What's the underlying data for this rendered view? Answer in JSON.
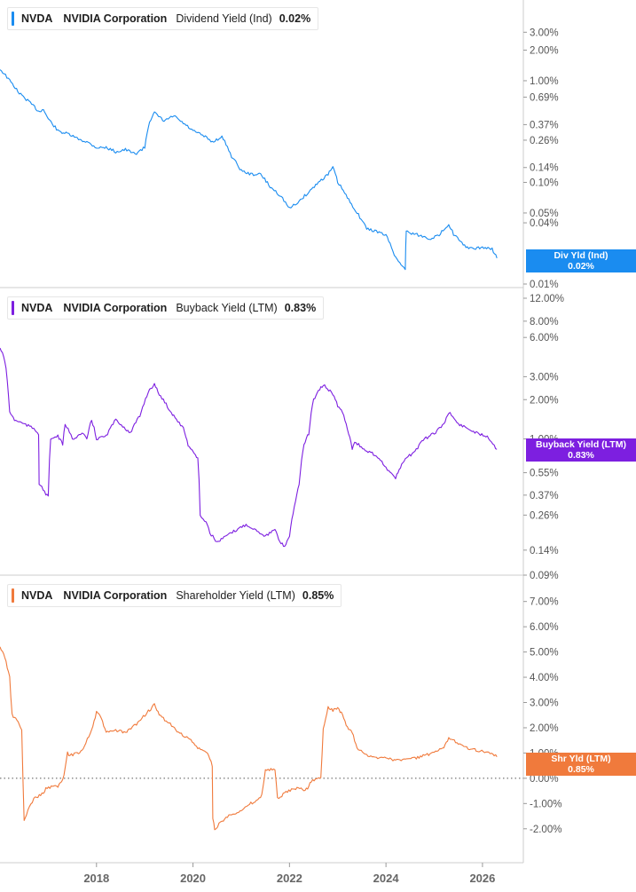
{
  "colors": {
    "dividend": "#1a8cf0",
    "buyback": "#7d1fe0",
    "shareholder": "#f07a3c",
    "axis_text": "#555555",
    "grid": "#dddddd"
  },
  "legends": [
    {
      "ticker": "NVDA",
      "company": "NVIDIA Corporation",
      "metric": "Dividend Yield (Ind)",
      "value": "0.02%"
    },
    {
      "ticker": "NVDA",
      "company": "NVIDIA Corporation",
      "metric": "Buyback Yield (LTM)",
      "value": "0.83%"
    },
    {
      "ticker": "NVDA",
      "company": "NVIDIA Corporation",
      "metric": "Shareholder Yield (LTM)",
      "value": "0.85%"
    }
  ],
  "flags": [
    {
      "label": "Div Yld (Ind)",
      "value": "0.02%"
    },
    {
      "label": "Buyback Yield (LTM)",
      "value": "0.83%"
    },
    {
      "label": "Shr Yld (LTM)",
      "value": "0.85%"
    }
  ],
  "chart_data": [
    {
      "type": "line",
      "series": [
        {
          "name": "Dividend Yield (Ind)",
          "x": [
            2016.0,
            2016.2,
            2016.4,
            2016.6,
            2016.8,
            2016.9,
            2017.0,
            2017.2,
            2017.4,
            2017.6,
            2017.8,
            2018.0,
            2018.2,
            2018.4,
            2018.6,
            2018.8,
            2019.0,
            2019.1,
            2019.2,
            2019.4,
            2019.6,
            2019.8,
            2020.0,
            2020.2,
            2020.4,
            2020.6,
            2020.8,
            2021.0,
            2021.2,
            2021.4,
            2021.6,
            2021.8,
            2022.0,
            2022.2,
            2022.4,
            2022.6,
            2022.8,
            2022.9,
            2023.0,
            2023.2,
            2023.4,
            2023.6,
            2023.8,
            2024.0,
            2024.2,
            2024.4,
            2024.42,
            2024.5,
            2024.7,
            2024.9,
            2025.1,
            2025.3,
            2025.4,
            2025.6,
            2025.8,
            2026.0,
            2026.2,
            2026.3
          ],
          "y": [
            1.3,
            1.0,
            0.75,
            0.62,
            0.5,
            0.52,
            0.42,
            0.32,
            0.3,
            0.27,
            0.25,
            0.22,
            0.22,
            0.2,
            0.21,
            0.19,
            0.22,
            0.4,
            0.48,
            0.4,
            0.45,
            0.38,
            0.32,
            0.29,
            0.25,
            0.28,
            0.18,
            0.13,
            0.12,
            0.12,
            0.09,
            0.075,
            0.055,
            0.065,
            0.08,
            0.1,
            0.12,
            0.14,
            0.1,
            0.07,
            0.05,
            0.035,
            0.033,
            0.03,
            0.018,
            0.014,
            0.033,
            0.032,
            0.03,
            0.028,
            0.03,
            0.039,
            0.031,
            0.024,
            0.022,
            0.023,
            0.022,
            0.018
          ]
        }
      ],
      "y_scale": "log",
      "ylim": [
        0.01,
        4
      ],
      "y_ticks": [
        "3.00%",
        "2.00%",
        "1.00%",
        "0.69%",
        "0.37%",
        "0.26%",
        "0.14%",
        "0.10%",
        "0.05%",
        "0.04%",
        "0.01%"
      ]
    },
    {
      "type": "line",
      "series": [
        {
          "name": "Buyback Yield (LTM)",
          "x": [
            2016.0,
            2016.1,
            2016.2,
            2016.3,
            2016.5,
            2016.7,
            2016.8,
            2016.81,
            2016.95,
            2017.0,
            2017.05,
            2017.2,
            2017.3,
            2017.35,
            2017.5,
            2017.7,
            2017.8,
            2017.9,
            2018.0,
            2018.2,
            2018.4,
            2018.6,
            2018.7,
            2018.9,
            2019.1,
            2019.2,
            2019.3,
            2019.5,
            2019.6,
            2019.8,
            2019.9,
            2020.0,
            2020.1,
            2020.15,
            2020.3,
            2020.35,
            2020.5,
            2020.7,
            2020.9,
            2021.1,
            2021.3,
            2021.5,
            2021.7,
            2021.8,
            2021.9,
            2022.0,
            2022.1,
            2022.2,
            2022.3,
            2022.4,
            2022.5,
            2022.6,
            2022.7,
            2022.9,
            2023.0,
            2023.1,
            2023.2,
            2023.3,
            2023.35,
            2023.6,
            2023.8,
            2024.0,
            2024.2,
            2024.3,
            2024.4,
            2024.6,
            2024.8,
            2025.0,
            2025.2,
            2025.3,
            2025.5,
            2025.7,
            2025.9,
            2026.1,
            2026.3
          ],
          "y": [
            5.0,
            4.0,
            1.6,
            1.4,
            1.3,
            1.2,
            1.1,
            0.45,
            0.38,
            0.36,
            1.0,
            1.05,
            0.9,
            1.3,
            1.0,
            1.1,
            1.0,
            1.4,
            1.0,
            1.05,
            1.4,
            1.2,
            1.1,
            1.5,
            2.4,
            2.6,
            2.2,
            1.7,
            1.5,
            1.2,
            0.9,
            0.8,
            0.7,
            0.26,
            0.22,
            0.19,
            0.16,
            0.18,
            0.2,
            0.22,
            0.2,
            0.18,
            0.2,
            0.16,
            0.15,
            0.18,
            0.3,
            0.45,
            0.9,
            1.1,
            2.0,
            2.3,
            2.6,
            2.2,
            1.8,
            1.6,
            1.2,
            0.85,
            0.95,
            0.8,
            0.75,
            0.6,
            0.5,
            0.6,
            0.7,
            0.8,
            1.0,
            1.1,
            1.3,
            1.6,
            1.3,
            1.2,
            1.1,
            1.05,
            0.83
          ]
        }
      ],
      "y_scale": "log",
      "ylim": [
        0.09,
        12
      ],
      "y_ticks": [
        "12.00%",
        "8.00%",
        "6.00%",
        "3.00%",
        "2.00%",
        "1.00%",
        "0.55%",
        "0.37%",
        "0.26%",
        "0.14%",
        "0.09%"
      ]
    },
    {
      "type": "line",
      "series": [
        {
          "name": "Shareholder Yield (LTM)",
          "x": [
            2016.0,
            2016.1,
            2016.2,
            2016.25,
            2016.35,
            2016.45,
            2016.5,
            2016.55,
            2016.7,
            2016.9,
            2016.95,
            2017.2,
            2017.3,
            2017.4,
            2017.45,
            2017.6,
            2017.7,
            2017.75,
            2017.9,
            2018.0,
            2018.1,
            2018.2,
            2018.4,
            2018.6,
            2018.8,
            2019.0,
            2019.1,
            2019.2,
            2019.3,
            2019.5,
            2019.7,
            2019.9,
            2020.1,
            2020.3,
            2020.4,
            2020.41,
            2020.45,
            2020.6,
            2020.8,
            2021.0,
            2021.2,
            2021.4,
            2021.45,
            2021.5,
            2021.7,
            2021.75,
            2021.9,
            2022.1,
            2022.3,
            2022.4,
            2022.45,
            2022.6,
            2022.65,
            2022.7,
            2022.8,
            2022.9,
            2023.0,
            2023.1,
            2023.2,
            2023.3,
            2023.4,
            2023.6,
            2023.8,
            2024.0,
            2024.2,
            2024.4,
            2024.6,
            2024.8,
            2025.0,
            2025.2,
            2025.3,
            2025.5,
            2025.7,
            2025.9,
            2026.1,
            2026.3
          ],
          "y": [
            5.2,
            4.8,
            4.0,
            2.5,
            2.3,
            1.9,
            -1.7,
            -1.4,
            -0.8,
            -0.6,
            -0.4,
            -0.3,
            -0.1,
            1.0,
            0.9,
            1.0,
            1.1,
            1.3,
            1.9,
            2.6,
            2.4,
            1.8,
            1.9,
            1.8,
            2.1,
            2.5,
            2.7,
            2.9,
            2.5,
            2.2,
            1.8,
            1.6,
            1.2,
            1.0,
            0.5,
            -1.6,
            -2.0,
            -1.7,
            -1.4,
            -1.3,
            -1.0,
            -0.8,
            -0.4,
            0.35,
            0.35,
            -0.8,
            -0.6,
            -0.4,
            -0.45,
            -0.35,
            -0.1,
            0.0,
            0.0,
            2.0,
            2.8,
            2.7,
            2.8,
            2.5,
            2.0,
            1.8,
            1.2,
            0.9,
            0.8,
            0.85,
            0.7,
            0.75,
            0.8,
            0.9,
            1.0,
            1.2,
            1.6,
            1.4,
            1.2,
            1.1,
            1.05,
            0.85
          ]
        }
      ],
      "y_scale": "linear",
      "ylim": [
        -2.5,
        7.2
      ],
      "y_ticks": [
        "7.00%",
        "6.00%",
        "5.00%",
        "4.00%",
        "3.00%",
        "2.00%",
        "1.00%",
        "0.00%",
        "-1.00%",
        "-2.00%"
      ]
    }
  ],
  "x_axis": {
    "range": [
      2016.0,
      2026.7
    ],
    "ticks": [
      "2018",
      "2020",
      "2022",
      "2024",
      "2026"
    ]
  }
}
